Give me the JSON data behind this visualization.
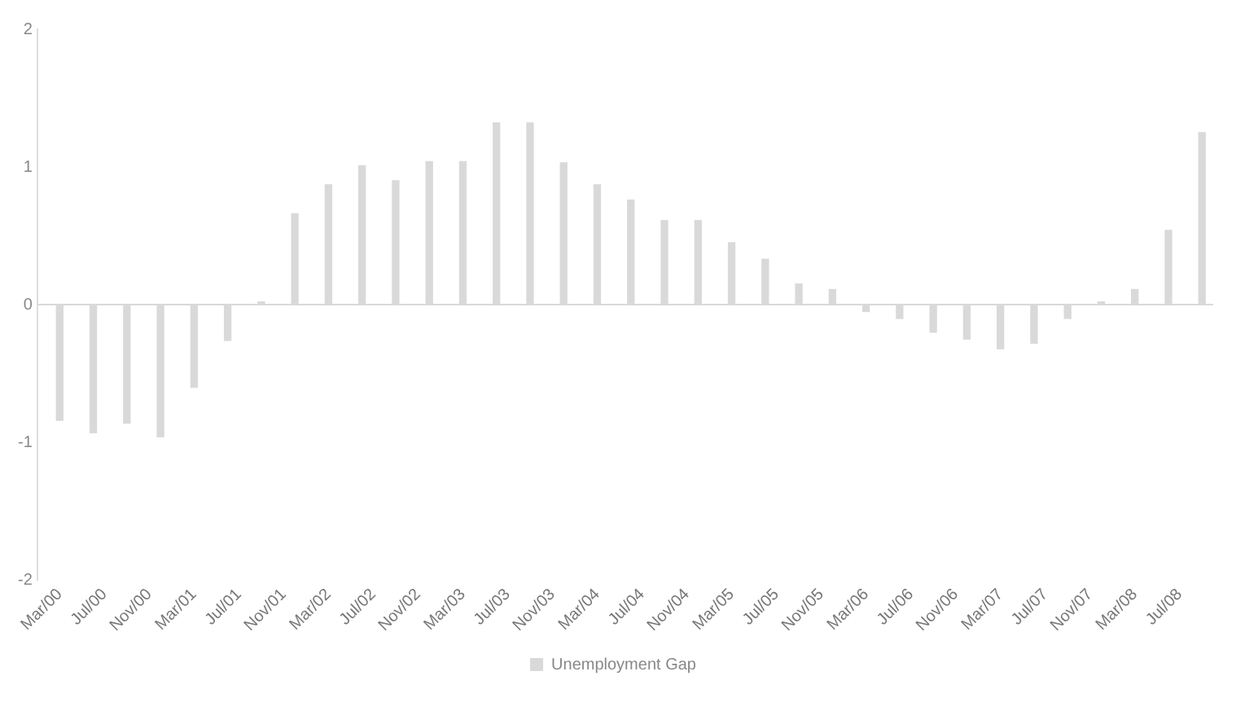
{
  "chart_data": {
    "type": "bar",
    "x": [
      "2000-03",
      "2000-06",
      "2000-09",
      "2000-12",
      "2001-03",
      "2001-06",
      "2001-09",
      "2001-12",
      "2002-03",
      "2002-06",
      "2002-09",
      "2002-12",
      "2003-03",
      "2003-06",
      "2003-09",
      "2003-12",
      "2004-03",
      "2004-06",
      "2004-09",
      "2004-12",
      "2005-03",
      "2005-06",
      "2005-09",
      "2005-12",
      "2006-03",
      "2006-06",
      "2006-09",
      "2006-12",
      "2007-03",
      "2007-06",
      "2007-09",
      "2007-12",
      "2008-03",
      "2008-06",
      "2008-09"
    ],
    "series": [
      {
        "name": "Unemployment Gap",
        "color": "#d9d9d9",
        "values": [
          -0.84,
          -0.93,
          -0.86,
          -0.96,
          -0.6,
          -0.26,
          0.02,
          0.66,
          0.87,
          1.01,
          0.9,
          1.04,
          1.04,
          1.32,
          1.32,
          1.03,
          0.87,
          0.76,
          0.61,
          0.61,
          0.45,
          0.33,
          0.15,
          0.11,
          -0.05,
          -0.1,
          -0.2,
          -0.25,
          -0.32,
          -0.28,
          -0.1,
          0.02,
          0.11,
          0.54,
          1.25
        ]
      }
    ],
    "xlim": [
      "2000-01",
      "2008-10"
    ],
    "xticks": [
      {
        "value": "2000-03",
        "label": "Mar/00"
      },
      {
        "value": "2000-07",
        "label": "Jul/00"
      },
      {
        "value": "2000-11",
        "label": "Nov/00"
      },
      {
        "value": "2001-03",
        "label": "Mar/01"
      },
      {
        "value": "2001-07",
        "label": "Jul/01"
      },
      {
        "value": "2001-11",
        "label": "Nov/01"
      },
      {
        "value": "2002-03",
        "label": "Mar/02"
      },
      {
        "value": "2002-07",
        "label": "Jul/02"
      },
      {
        "value": "2002-11",
        "label": "Nov/02"
      },
      {
        "value": "2003-03",
        "label": "Mar/03"
      },
      {
        "value": "2003-07",
        "label": "Jul/03"
      },
      {
        "value": "2003-11",
        "label": "Nov/03"
      },
      {
        "value": "2004-03",
        "label": "Mar/04"
      },
      {
        "value": "2004-07",
        "label": "Jul/04"
      },
      {
        "value": "2004-11",
        "label": "Nov/04"
      },
      {
        "value": "2005-03",
        "label": "Mar/05"
      },
      {
        "value": "2005-07",
        "label": "Jul/05"
      },
      {
        "value": "2005-11",
        "label": "Nov/05"
      },
      {
        "value": "2006-03",
        "label": "Mar/06"
      },
      {
        "value": "2006-07",
        "label": "Jul/06"
      },
      {
        "value": "2006-11",
        "label": "Nov/06"
      },
      {
        "value": "2007-03",
        "label": "Mar/07"
      },
      {
        "value": "2007-07",
        "label": "Jul/07"
      },
      {
        "value": "2007-11",
        "label": "Nov/07"
      },
      {
        "value": "2008-03",
        "label": "Mar/08"
      },
      {
        "value": "2008-07",
        "label": "Jul/08"
      }
    ],
    "ylim": [
      -2,
      2
    ],
    "yticks": [
      -2,
      -1,
      0,
      1,
      2
    ],
    "ref_lines": [
      {
        "axis": "y",
        "value": 0,
        "color": "#d9d9d9"
      }
    ],
    "grid": false,
    "legend": "bottom"
  }
}
